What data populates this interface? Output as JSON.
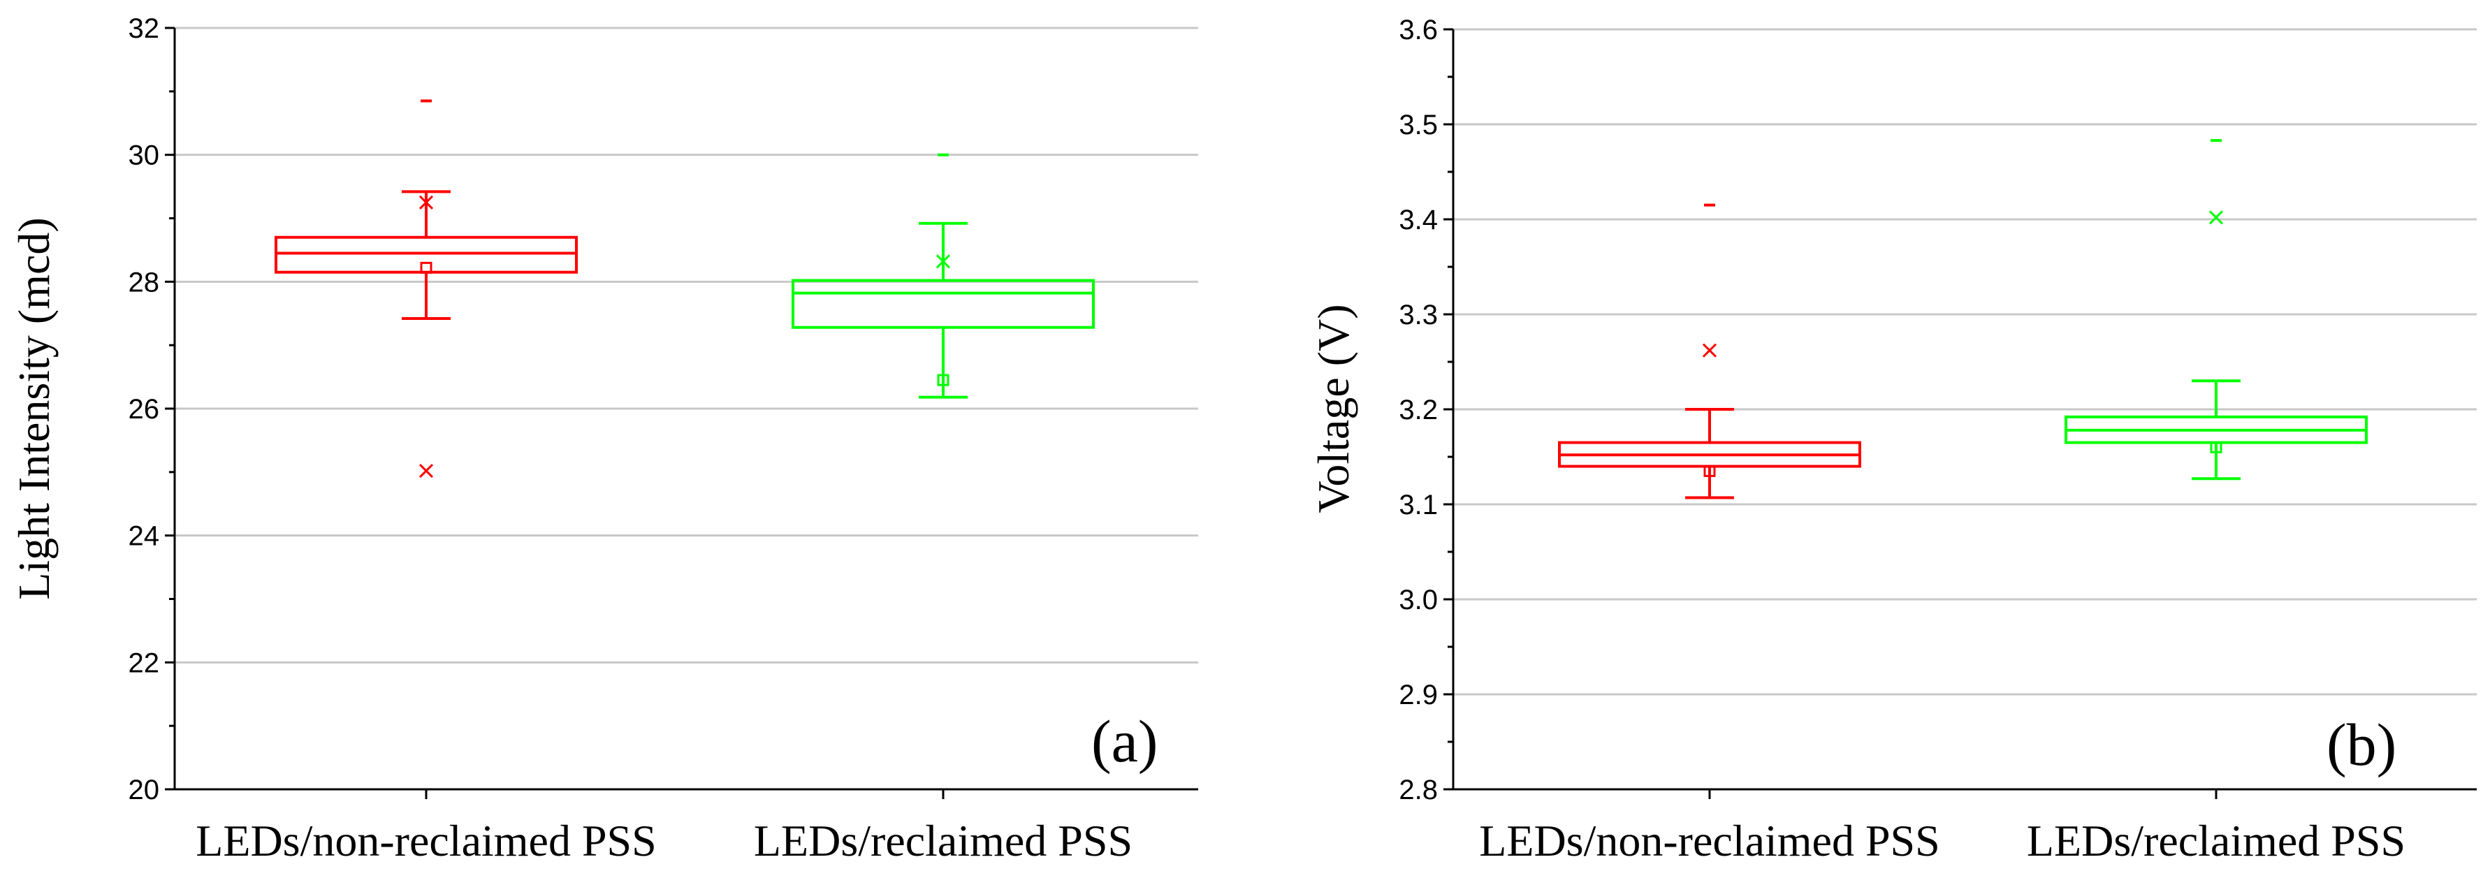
{
  "chart_data": [
    {
      "type": "box",
      "panel_label": "(a)",
      "ylabel": "Light Intensity (mcd)",
      "ylim": [
        20,
        32
      ],
      "y_major_ticks": [
        20,
        22,
        24,
        26,
        28,
        30,
        32
      ],
      "y_minor_step": 1,
      "grid": true,
      "categories": [
        "LEDs/non-reclaimed  PSS",
        "LEDs/reclaimed  PSS"
      ],
      "boxes": [
        {
          "color": "#ff0000",
          "q1": 28.15,
          "median": 28.45,
          "q3": 28.7,
          "whisker_low": 27.42,
          "whisker_high": 29.42,
          "mean": 28.22,
          "min_marker": 25.02,
          "max_marker": 29.25,
          "outlier_dash": 30.85
        },
        {
          "color": "#00ff00",
          "q1": 27.28,
          "median": 27.82,
          "q3": 28.02,
          "whisker_low": 26.18,
          "whisker_high": 28.92,
          "mean": 26.45,
          "min_marker": null,
          "max_marker": 28.32,
          "outlier_dash": 30.0
        }
      ]
    },
    {
      "type": "box",
      "panel_label": "(b)",
      "ylabel": "Voltage (V)",
      "ylim": [
        2.8,
        3.6
      ],
      "y_major_ticks": [
        "2.8",
        "2.9",
        "3.0",
        "3.1",
        "3.2",
        "3.3",
        "3.4",
        "3.5",
        "3.6"
      ],
      "y_minor_step": 0.05,
      "grid": true,
      "categories": [
        "LEDs/non-reclaimed  PSS",
        "LEDs/reclaimed  PSS"
      ],
      "boxes": [
        {
          "color": "#ff0000",
          "q1": 3.14,
          "median": 3.152,
          "q3": 3.165,
          "whisker_low": 3.107,
          "whisker_high": 3.2,
          "mean": 3.135,
          "min_marker": null,
          "max_marker": 3.262,
          "outlier_dash": 3.415
        },
        {
          "color": "#00ff00",
          "q1": 3.165,
          "median": 3.178,
          "q3": 3.192,
          "whisker_low": 3.127,
          "whisker_high": 3.23,
          "mean": 3.16,
          "min_marker": null,
          "max_marker": 3.402,
          "outlier_dash": 3.483
        }
      ]
    }
  ]
}
